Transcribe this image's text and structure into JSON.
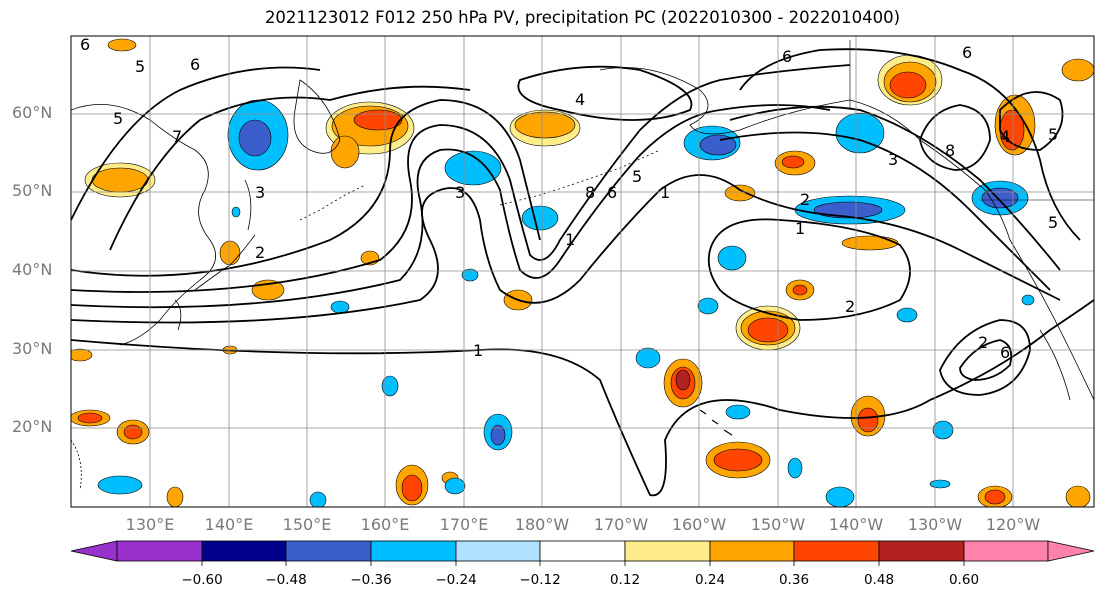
{
  "title": "2021123012 F012 250 hPa PV, precipitation PC (2022010300 - 2022010400)",
  "map": {
    "lat_labels": [
      "60°N",
      "50°N",
      "40°N",
      "30°N",
      "20°N"
    ],
    "lon_labels": [
      "130°E",
      "140°E",
      "150°E",
      "160°E",
      "170°E",
      "180°W",
      "170°W",
      "160°W",
      "150°W",
      "140°W",
      "130°W",
      "120°W"
    ],
    "contour_labels": [
      "6",
      "5",
      "6",
      "5",
      "7",
      "4",
      "6",
      "6",
      "5",
      "3",
      "3",
      "8",
      "6",
      "5",
      "1",
      "2",
      "1",
      "2",
      "1",
      "8",
      "4",
      "5",
      "2",
      "3",
      "1",
      "2",
      "6"
    ]
  },
  "colorbar": {
    "tick_labels": [
      "−0.60",
      "−0.48",
      "−0.36",
      "−0.24",
      "−0.12",
      "0.12",
      "0.24",
      "0.36",
      "0.48",
      "0.60"
    ],
    "colors": [
      "#9932cc",
      "#00008b",
      "#3a5fcd",
      "#00bfff",
      "#b0e2ff",
      "#ffffff",
      "#ffec8b",
      "#ffa500",
      "#ff4500",
      "#b22222",
      "#ff82ab"
    ]
  }
}
